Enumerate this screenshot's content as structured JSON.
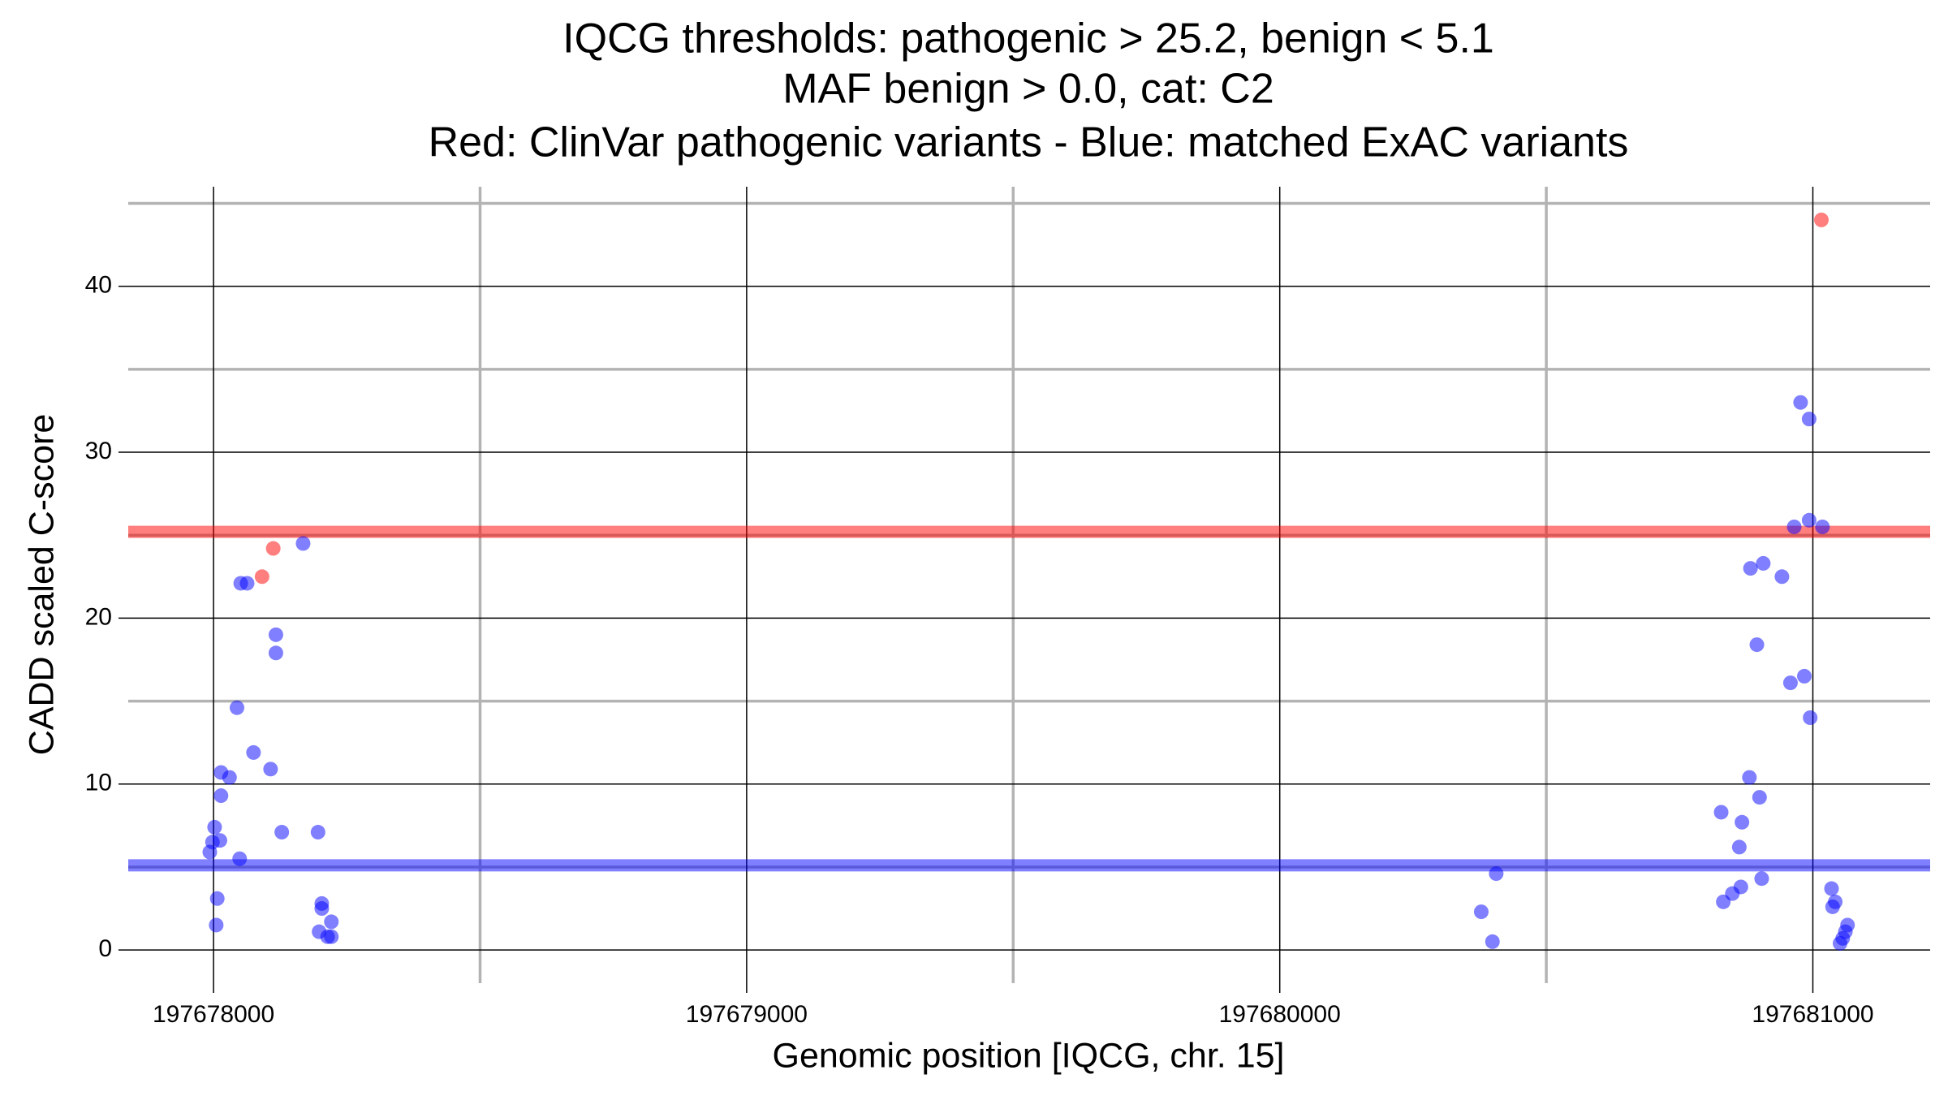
{
  "chart_data": {
    "type": "scatter",
    "title": "IQCG thresholds: pathogenic > 25.2, benign < 5.1",
    "subtitle": "MAF benign > 0.0, cat: C2",
    "caption": "Red: ClinVar pathogenic variants - Blue: matched ExAC variants",
    "xlabel": "Genomic position [IQCG, chr. 15]",
    "ylabel": "CADD scaled C-score",
    "xlim": [
      197677840,
      197681220
    ],
    "ylim": [
      -2,
      46
    ],
    "xticks": [
      197678000,
      197679000,
      197680000,
      197681000
    ],
    "yticks": [
      0,
      10,
      20,
      30,
      40
    ],
    "xminor": [
      197678500,
      197679500,
      197680500
    ],
    "yminor": [
      5,
      15,
      25,
      35,
      45
    ],
    "grid": true,
    "hlines": [
      {
        "value": 25.2,
        "color": "#ff0000"
      },
      {
        "value": 5.1,
        "color": "#0000ff"
      }
    ],
    "series": [
      {
        "color": "#0000ff",
        "x": [
          197677993,
          197677998,
          197678002,
          197678012,
          197678007,
          197678005,
          197678014,
          197678014,
          197678030,
          197678044,
          197678049,
          197678051,
          197678063,
          197678075,
          197678107,
          197678117,
          197678117,
          197678128,
          197678168,
          197678196,
          197678203,
          197678203,
          197678198,
          197678221,
          197678214,
          197678221,
          197680378,
          197680406,
          197680399,
          197680828,
          197680832,
          197680849,
          197680862,
          197680865,
          197680867,
          197680881,
          197680883,
          197680895,
          197680900,
          197680904,
          197680907,
          197680942,
          197680958,
          197680965,
          197680977,
          197680984,
          197680993,
          197680993,
          197680995,
          197681018,
          197681035,
          197681037,
          197681042,
          197681056,
          197681051,
          197681065,
          197681061
        ],
        "values": [
          5.9,
          6.5,
          7.4,
          6.6,
          3.1,
          1.5,
          10.7,
          9.3,
          10.4,
          14.6,
          5.5,
          22.1,
          22.1,
          11.9,
          10.9,
          19.0,
          17.9,
          7.1,
          24.5,
          7.1,
          2.8,
          2.5,
          1.1,
          1.7,
          0.8,
          0.8,
          2.3,
          4.6,
          0.5,
          8.3,
          2.9,
          3.4,
          6.2,
          3.8,
          7.7,
          10.4,
          23.0,
          18.4,
          9.2,
          4.3,
          23.3,
          22.5,
          16.1,
          25.5,
          33.0,
          16.5,
          25.9,
          32.0,
          14.0,
          25.5,
          3.7,
          2.6,
          2.9,
          0.7,
          0.4,
          1.5,
          1.1
        ]
      },
      {
        "color": "#ff0000",
        "x": [
          197678091,
          197678112,
          197681016
        ],
        "values": [
          22.5,
          24.2,
          44.0
        ]
      }
    ]
  }
}
